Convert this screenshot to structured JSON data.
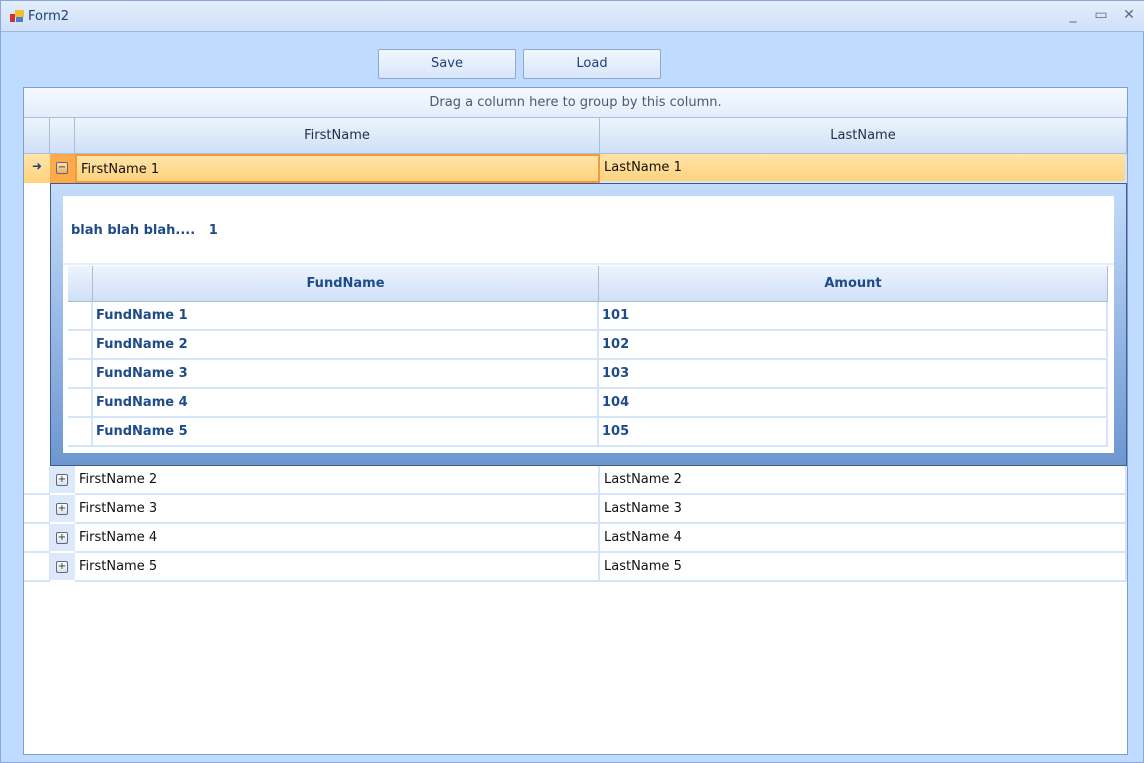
{
  "window": {
    "title": "Form2",
    "minimize": "_",
    "maximize": "▭",
    "close": "✕"
  },
  "toolbar": {
    "save_label": "Save",
    "load_label": "Load"
  },
  "grid": {
    "group_panel": "Drag a column here to group by this column.",
    "columns": [
      "FirstName",
      "LastName"
    ],
    "rows": [
      {
        "first": "FirstName 1",
        "last": "LastName 1",
        "expanded": true,
        "selected": true
      },
      {
        "first": "FirstName 2",
        "last": "LastName 2"
      },
      {
        "first": "FirstName 3",
        "last": "LastName 3"
      },
      {
        "first": "FirstName 4",
        "last": "LastName 4"
      },
      {
        "first": "FirstName 5",
        "last": "LastName 5"
      }
    ],
    "detail": {
      "title": "blah blah blah....   1",
      "columns": [
        "FundName",
        "Amount"
      ],
      "rows": [
        {
          "fund": "FundName 1",
          "amount": "101"
        },
        {
          "fund": "FundName 2",
          "amount": "102"
        },
        {
          "fund": "FundName 3",
          "amount": "103"
        },
        {
          "fund": "FundName 4",
          "amount": "104"
        },
        {
          "fund": "FundName 5",
          "amount": "105"
        }
      ]
    }
  },
  "colors": {
    "selected_row": "#ffd27e",
    "accent": "#1f4b8a",
    "window_bg": "#bfdbff"
  }
}
